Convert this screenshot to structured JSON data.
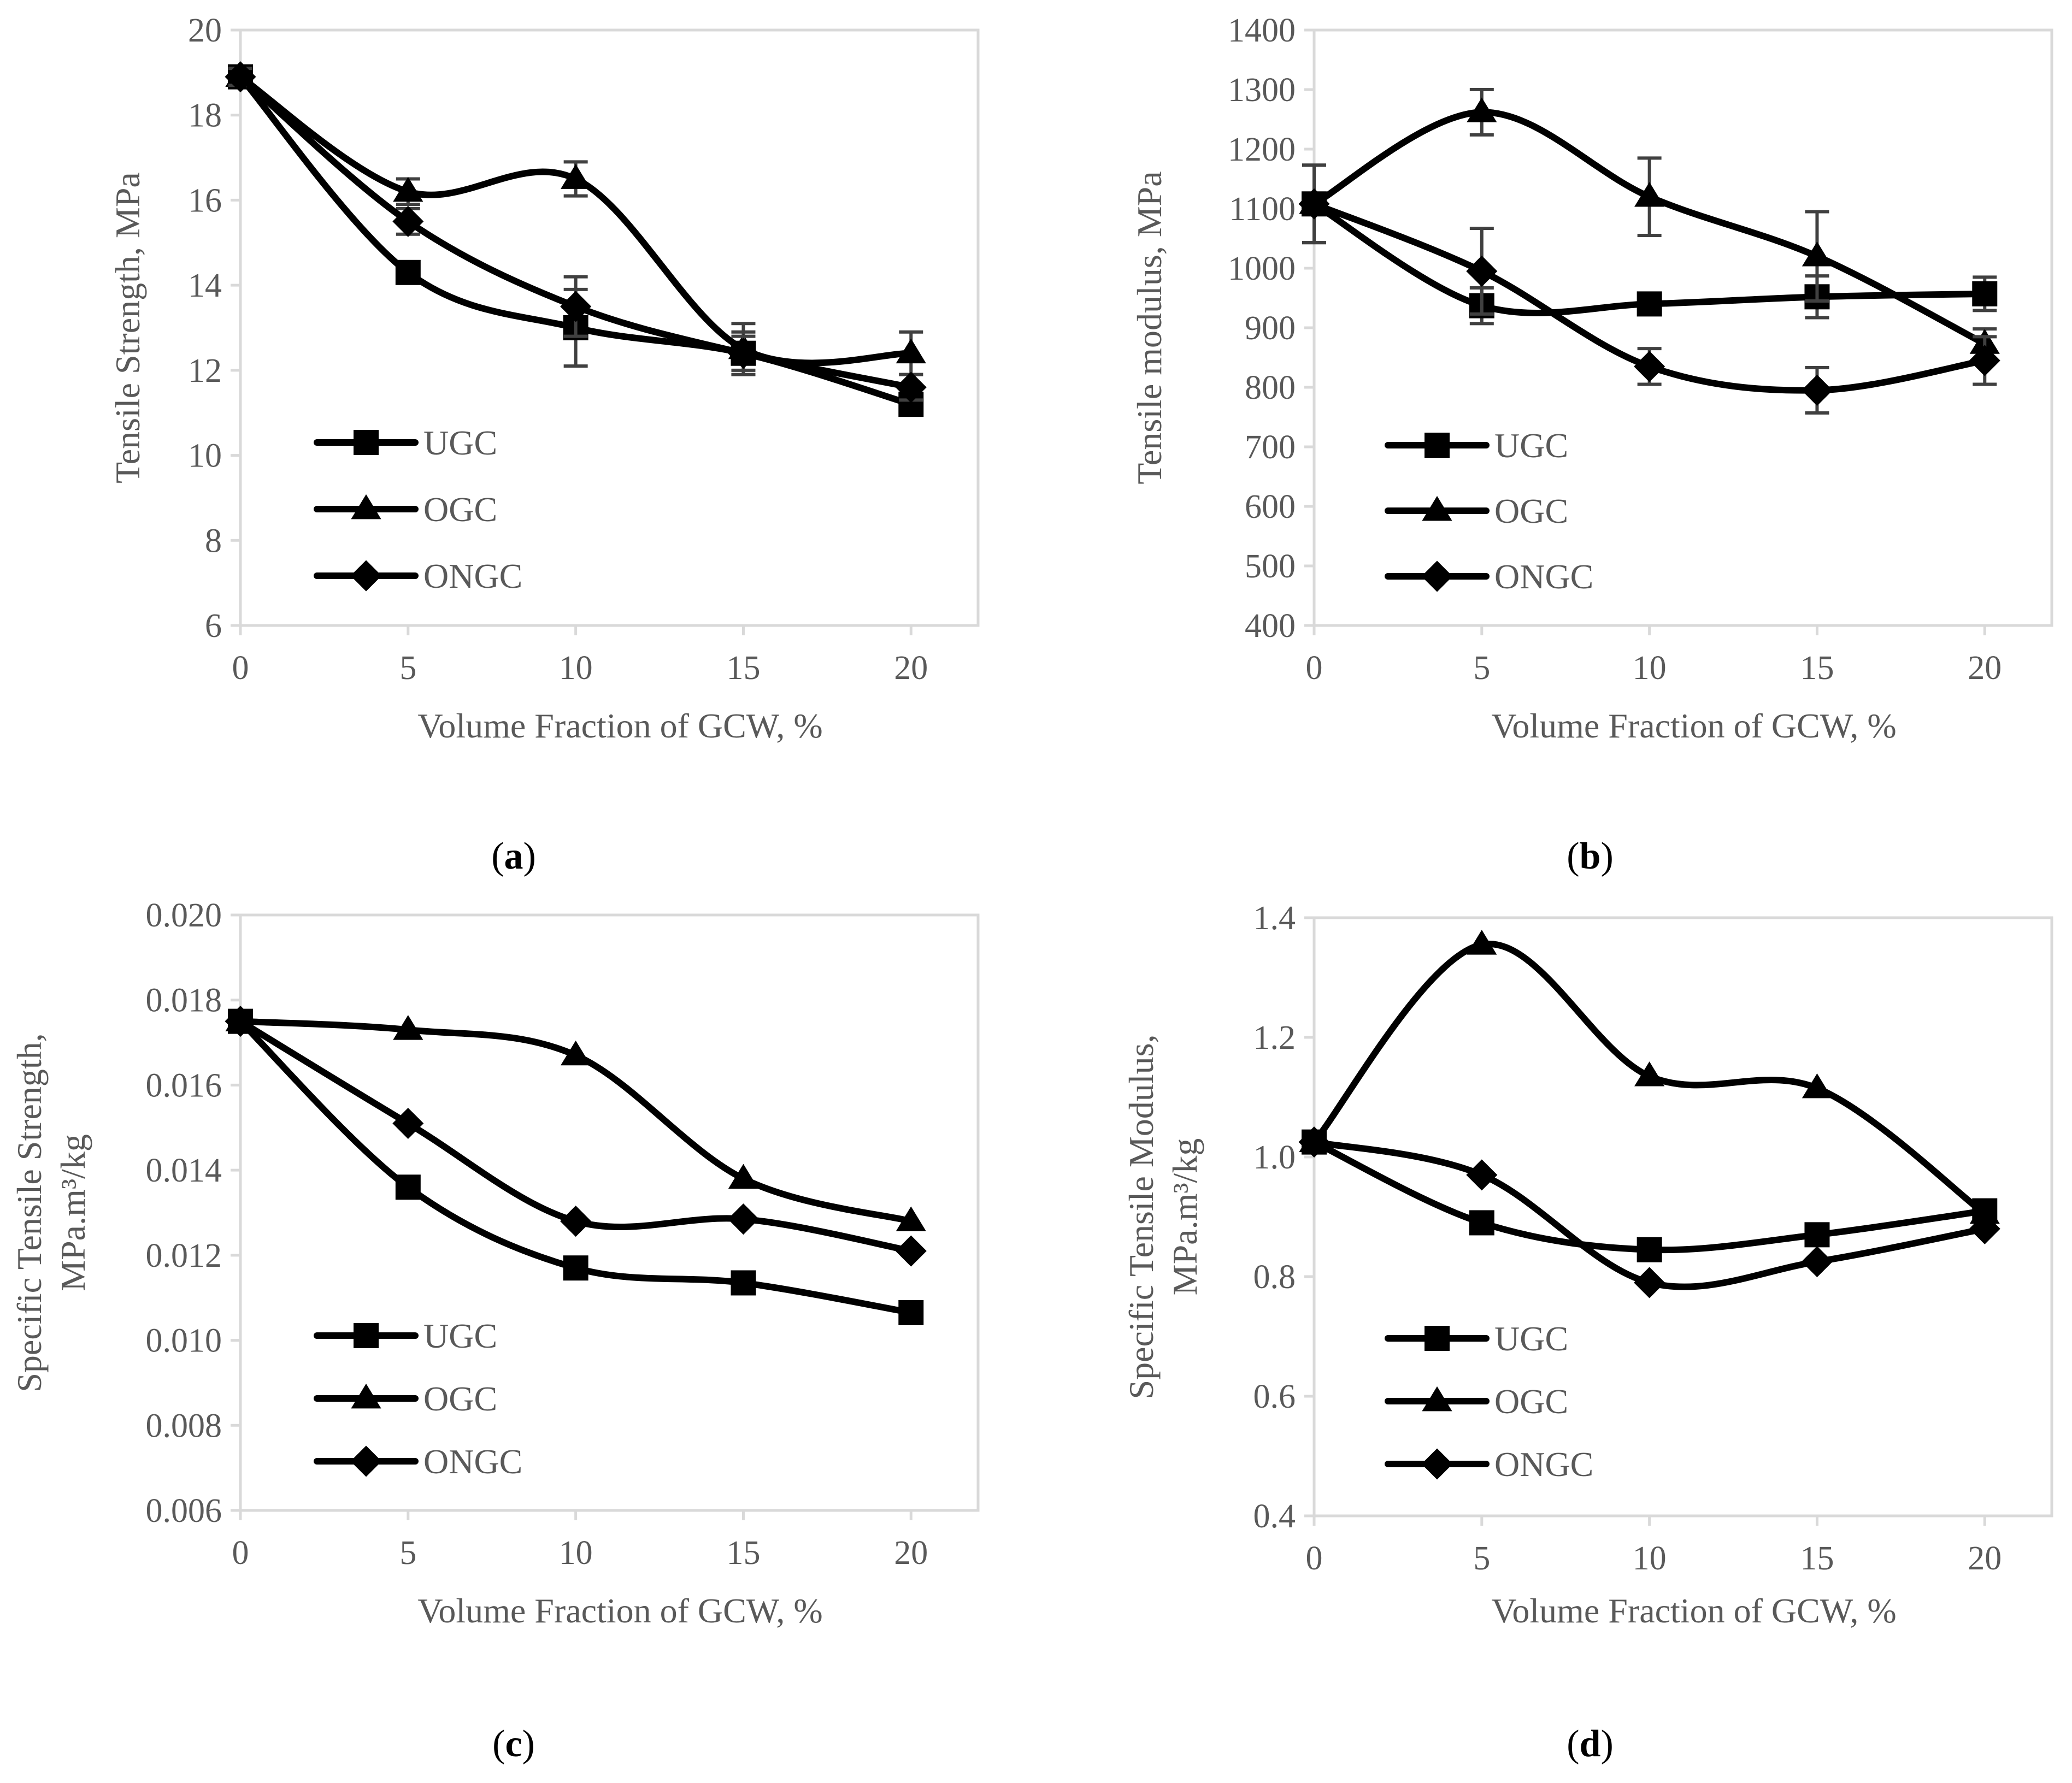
{
  "chart_data": [
    {
      "type": "line",
      "panel": "a",
      "caption": "(a)",
      "xlabel": "Volume Fraction of GCW, %",
      "ylabel": "Tensile Strength, MPa",
      "ylabel_lines": [
        "Tensile Strength, MPa"
      ],
      "x": [
        0,
        5,
        10,
        15,
        20
      ],
      "x_tick_labels": [
        "0",
        "5",
        "10",
        "15",
        "20"
      ],
      "xlim": [
        0,
        22
      ],
      "ylim": [
        6,
        20
      ],
      "y_ticks": [
        6,
        8,
        10,
        12,
        14,
        16,
        18,
        20
      ],
      "y_tick_labels": [
        "6",
        "8",
        "10",
        "12",
        "14",
        "16",
        "18",
        "20"
      ],
      "grid": false,
      "legend": "lower-left",
      "series": [
        {
          "name": "UGC",
          "marker": "square",
          "values": [
            18.9,
            14.3,
            13.0,
            12.4,
            11.2
          ],
          "errors": [
            0.2,
            0.2,
            0.9,
            0.5,
            0.2
          ]
        },
        {
          "name": "OGC",
          "marker": "triangle",
          "values": [
            18.9,
            16.2,
            16.5,
            12.5,
            12.4
          ],
          "errors": [
            0.2,
            0.3,
            0.4,
            0.6,
            0.5
          ]
        },
        {
          "name": "ONGC",
          "marker": "diamond",
          "values": [
            18.9,
            15.5,
            13.5,
            12.4,
            11.6
          ],
          "errors": [
            0.2,
            0.3,
            0.7,
            0.4,
            0.3
          ]
        }
      ]
    },
    {
      "type": "line",
      "panel": "b",
      "caption": "(b)",
      "xlabel": "Volume Fraction of GCW, %",
      "ylabel": "Tensile modulus, MPa",
      "ylabel_lines": [
        "Tensile modulus, MPa"
      ],
      "x": [
        0,
        5,
        10,
        15,
        20
      ],
      "x_tick_labels": [
        "0",
        "5",
        "10",
        "15",
        "20"
      ],
      "xlim": [
        0,
        22
      ],
      "ylim": [
        400,
        1400
      ],
      "y_ticks": [
        400,
        500,
        600,
        700,
        800,
        900,
        1000,
        1100,
        1200,
        1300,
        1400
      ],
      "y_tick_labels": [
        "400",
        "500",
        "600",
        "700",
        "800",
        "900",
        "1000",
        "1100",
        "1200",
        "1300",
        "1400"
      ],
      "grid": false,
      "legend": "lower-left",
      "series": [
        {
          "name": "UGC",
          "marker": "square",
          "values": [
            1108,
            937,
            940,
            952,
            957
          ],
          "errors": [
            65,
            30,
            10,
            35,
            28
          ]
        },
        {
          "name": "OGC",
          "marker": "triangle",
          "values": [
            1108,
            1262,
            1120,
            1020,
            873
          ],
          "errors": [
            65,
            38,
            65,
            75,
            25
          ]
        },
        {
          "name": "ONGC",
          "marker": "diamond",
          "values": [
            1108,
            995,
            835,
            795,
            845
          ],
          "errors": [
            65,
            72,
            30,
            38,
            40
          ]
        }
      ]
    },
    {
      "type": "line",
      "panel": "c",
      "caption": "(c)",
      "xlabel": "Volume Fraction of GCW, %",
      "ylabel": "Specific Tensile Strength, MPa.m³/kg",
      "ylabel_lines": [
        "Specific Tensile Strength,",
        "MPa.m³/kg"
      ],
      "x": [
        0,
        5,
        10,
        15,
        20
      ],
      "x_tick_labels": [
        "0",
        "5",
        "10",
        "15",
        "20"
      ],
      "xlim": [
        0,
        22
      ],
      "ylim": [
        0.006,
        0.02
      ],
      "y_ticks": [
        0.006,
        0.008,
        0.01,
        0.012,
        0.014,
        0.016,
        0.018,
        0.02
      ],
      "y_tick_labels": [
        "0.006",
        "0.008",
        "0.010",
        "0.012",
        "0.014",
        "0.016",
        "0.018",
        "0.020"
      ],
      "grid": false,
      "legend": "lower-left",
      "series": [
        {
          "name": "UGC",
          "marker": "square",
          "values": [
            0.0175,
            0.0136,
            0.0117,
            0.01135,
            0.01065
          ]
        },
        {
          "name": "OGC",
          "marker": "triangle",
          "values": [
            0.0175,
            0.0173,
            0.0167,
            0.0138,
            0.0128
          ]
        },
        {
          "name": "ONGC",
          "marker": "diamond",
          "values": [
            0.0175,
            0.0151,
            0.0128,
            0.01285,
            0.0121
          ]
        }
      ]
    },
    {
      "type": "line",
      "panel": "d",
      "caption": "(d)",
      "xlabel": "Volume Fraction of GCW, %",
      "ylabel": "Specific Tensile Modulus, MPa.m³/kg",
      "ylabel_lines": [
        "Specific Tensile Modulus,",
        "MPa.m³/kg"
      ],
      "x": [
        0,
        5,
        10,
        15,
        20
      ],
      "x_tick_labels": [
        "0",
        "5",
        "10",
        "15",
        "20"
      ],
      "xlim": [
        0,
        22
      ],
      "ylim": [
        0.4,
        1.4
      ],
      "y_ticks": [
        0.4,
        0.6,
        0.8,
        1.0,
        1.2,
        1.4
      ],
      "y_tick_labels": [
        "0.4",
        "0.6",
        "0.8",
        "1.0",
        "1.2",
        "1.4"
      ],
      "grid": false,
      "legend": "lower-left",
      "series": [
        {
          "name": "UGC",
          "marker": "square",
          "values": [
            1.025,
            0.89,
            0.845,
            0.87,
            0.91
          ]
        },
        {
          "name": "OGC",
          "marker": "triangle",
          "values": [
            1.025,
            1.355,
            1.135,
            1.115,
            0.905
          ]
        },
        {
          "name": "ONGC",
          "marker": "diamond",
          "values": [
            1.025,
            0.97,
            0.79,
            0.825,
            0.88
          ]
        }
      ]
    }
  ]
}
